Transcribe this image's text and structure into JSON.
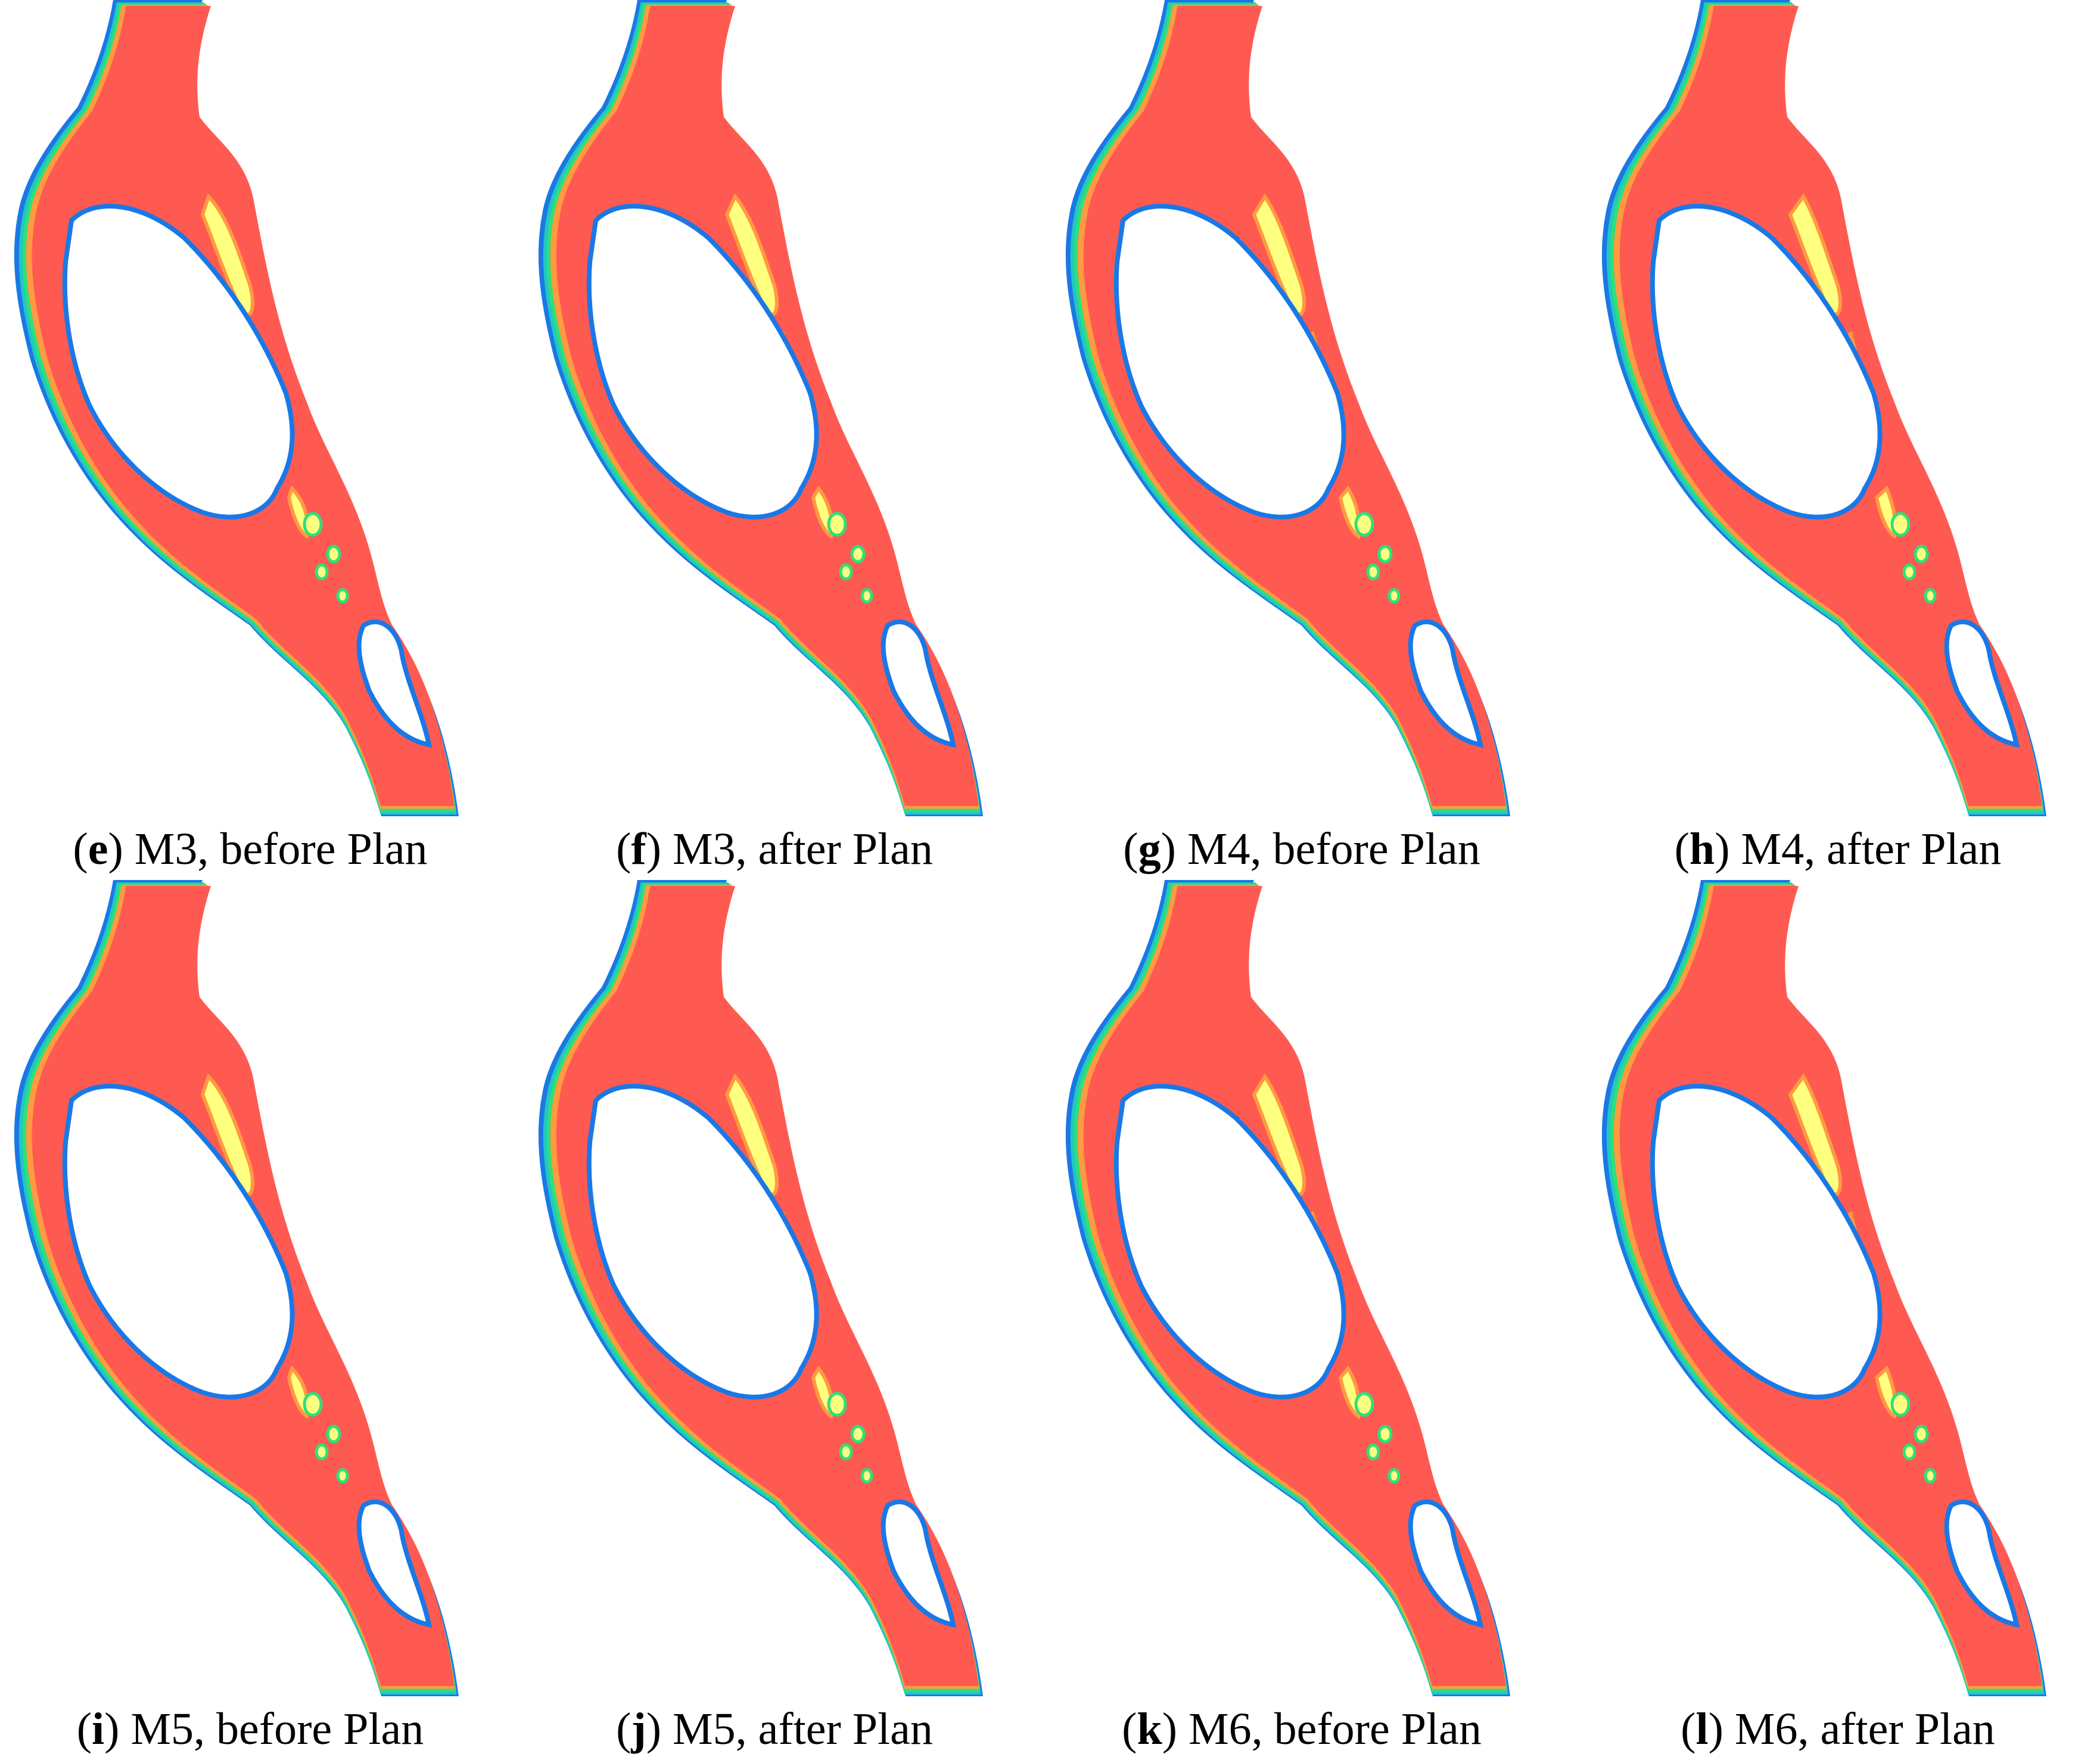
{
  "colors": {
    "background": "#ffffff",
    "bank_outer": "#1a78e6",
    "bank_inner": "#22c7c0",
    "band_green": "#2ee07a",
    "band_yellow": "#ffff80",
    "band_orange": "#ff9a40",
    "band_red": "#ff5a52"
  },
  "panels": [
    {
      "letter": "e",
      "text": "M3, before Plan"
    },
    {
      "letter": "f",
      "text": "M3, after Plan"
    },
    {
      "letter": "g",
      "text": "M4, before Plan"
    },
    {
      "letter": "h",
      "text": "M4, after Plan"
    },
    {
      "letter": "i",
      "text": "M5, before Plan"
    },
    {
      "letter": "j",
      "text": "M5, after Plan"
    },
    {
      "letter": "k",
      "text": "M6, before Plan"
    },
    {
      "letter": "l",
      "text": "M6, after Plan"
    }
  ]
}
